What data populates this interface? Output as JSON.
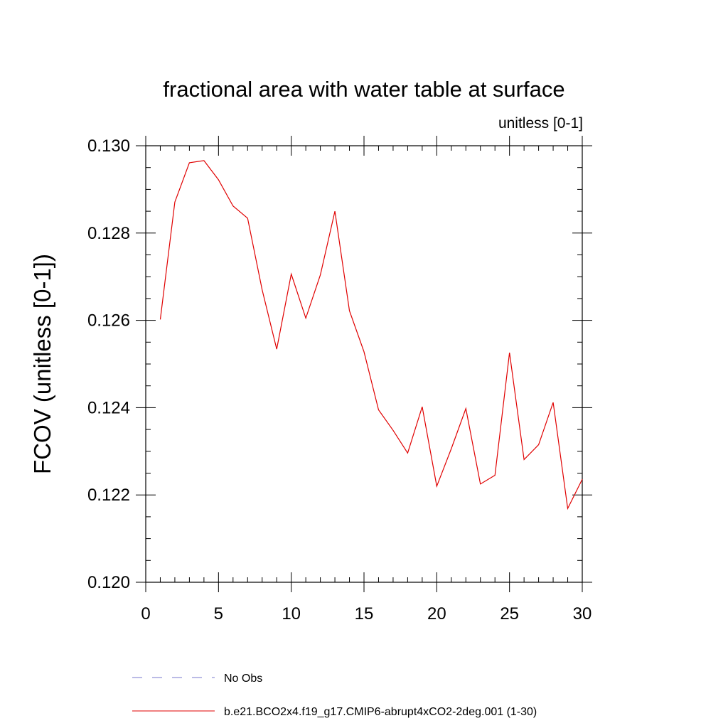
{
  "chart_data": {
    "type": "line",
    "title": "fractional area with water table at surface",
    "subtitle": "unitless [0-1]",
    "xlabel": "",
    "ylabel": "FCOV  (unitless [0-1])",
    "xlim": [
      0,
      30
    ],
    "ylim": [
      0.12,
      0.13
    ],
    "x_ticks": [
      0,
      5,
      10,
      15,
      20,
      25,
      30
    ],
    "x_tick_labels": [
      "0",
      "5",
      "10",
      "15",
      "20",
      "25",
      "30"
    ],
    "y_ticks": [
      0.12,
      0.122,
      0.124,
      0.126,
      0.128,
      0.13
    ],
    "y_tick_labels": [
      "0.120",
      "0.122",
      "0.124",
      "0.126",
      "0.128",
      "0.130"
    ],
    "grid": false,
    "legend_position": "bottom",
    "series": [
      {
        "name": "No Obs",
        "color": "#7777cc",
        "style": "dashed",
        "x": [],
        "y": []
      },
      {
        "name": "b.e21.BCO2x4.f19_g17.CMIP6-abrupt4xCO2-2deg.001 (1-30)",
        "color": "#e00000",
        "style": "solid",
        "x": [
          1,
          2,
          3,
          4,
          5,
          6,
          7,
          8,
          9,
          10,
          11,
          12,
          13,
          14,
          15,
          16,
          17,
          18,
          19,
          20,
          21,
          22,
          23,
          24,
          25,
          26,
          27,
          28,
          29,
          30
        ],
        "y": [
          0.12602,
          0.12871,
          0.12961,
          0.12966,
          0.12922,
          0.12862,
          0.12834,
          0.1267,
          0.12534,
          0.12706,
          0.12605,
          0.12704,
          0.1285,
          0.12622,
          0.12528,
          0.12395,
          0.12348,
          0.12296,
          0.12402,
          0.1222,
          0.12306,
          0.12398,
          0.12225,
          0.12245,
          0.12526,
          0.12281,
          0.12315,
          0.12412,
          0.12169,
          0.12236
        ]
      }
    ]
  }
}
